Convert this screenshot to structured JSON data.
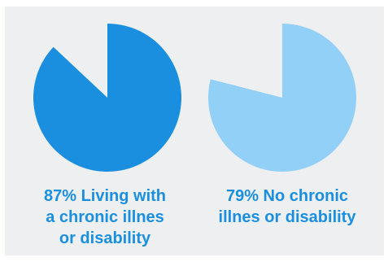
{
  "colors": {
    "background": "#eeeff0",
    "dark_blue": "#1a8fe0",
    "light_blue": "#92d0f8",
    "label_text": "#1a8fe0"
  },
  "chart_data": [
    {
      "type": "pie",
      "value": 87,
      "unit": "%",
      "color": "#1a8fe0",
      "label_lines": [
        "87% Living with",
        "a chronic illnes",
        "or disability"
      ]
    },
    {
      "type": "pie",
      "value": 79,
      "unit": "%",
      "color": "#92d0f8",
      "label_lines": [
        "79% No chronic",
        "illnes or disability"
      ]
    }
  ]
}
